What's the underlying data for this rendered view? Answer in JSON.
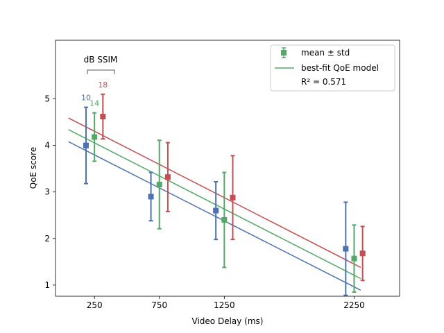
{
  "chart_data": {
    "type": "scatter",
    "title": "",
    "xlabel": "Video Delay (ms)",
    "ylabel": "QoE score",
    "xlim": [
      -50,
      2600
    ],
    "ylim": [
      0.76,
      6.26
    ],
    "xticks": [
      250,
      750,
      1250,
      2250
    ],
    "yticks": [
      1,
      2,
      3,
      4,
      5
    ],
    "grid": false,
    "legend": {
      "placement": "top-right",
      "entries": [
        "mean ± std",
        "best-fit QoE model",
        "R² = 0.571"
      ]
    },
    "annotation": {
      "bracket_label": "dB SSIM",
      "categories": [
        "10",
        "14",
        "18"
      ]
    },
    "series": [
      {
        "name": "10",
        "color": "#4c72b0",
        "points": [
          {
            "x": 185,
            "mean": 4.0,
            "std": 0.82
          },
          {
            "x": 685,
            "mean": 2.9,
            "std": 0.52
          },
          {
            "x": 1185,
            "mean": 2.6,
            "std": 0.62
          },
          {
            "x": 2185,
            "mean": 1.78,
            "std": 1.0
          }
        ],
        "fit": [
          [
            50,
            4.08
          ],
          [
            2300,
            0.89
          ]
        ]
      },
      {
        "name": "14",
        "color": "#55a868",
        "points": [
          {
            "x": 250,
            "mean": 4.18,
            "std": 0.52
          },
          {
            "x": 750,
            "mean": 3.16,
            "std": 0.95
          },
          {
            "x": 1250,
            "mean": 2.4,
            "std": 1.02
          },
          {
            "x": 2250,
            "mean": 1.57,
            "std": 0.72
          }
        ],
        "fit": [
          [
            50,
            4.34
          ],
          [
            2300,
            1.14
          ]
        ]
      },
      {
        "name": "18",
        "color": "#c44e52",
        "points": [
          {
            "x": 315,
            "mean": 4.62,
            "std": 0.48
          },
          {
            "x": 815,
            "mean": 3.32,
            "std": 0.74
          },
          {
            "x": 1315,
            "mean": 2.88,
            "std": 0.9
          },
          {
            "x": 2315,
            "mean": 1.68,
            "std": 0.58
          }
        ],
        "fit": [
          [
            50,
            4.59
          ],
          [
            2300,
            1.38
          ]
        ]
      }
    ]
  }
}
